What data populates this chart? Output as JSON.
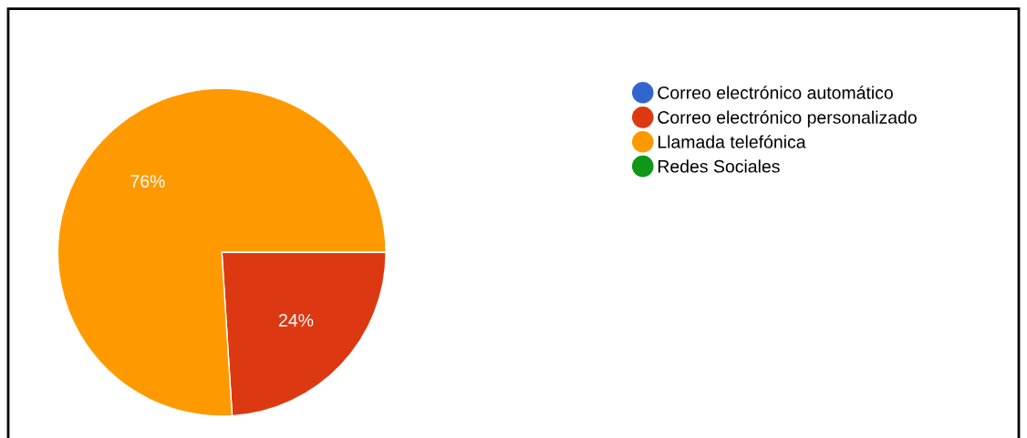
{
  "chart_data": {
    "type": "pie",
    "categories": [
      "Correo electrónico automático",
      "Correo electrónico personalizado",
      "Llamada telefónica",
      "Redes Sociales"
    ],
    "values": [
      0,
      24,
      76,
      0
    ],
    "colors": [
      "#3366cc",
      "#dc3912",
      "#ff9900",
      "#109618"
    ],
    "value_labels": [
      null,
      "24%",
      "76%",
      null
    ],
    "legend": "right"
  }
}
